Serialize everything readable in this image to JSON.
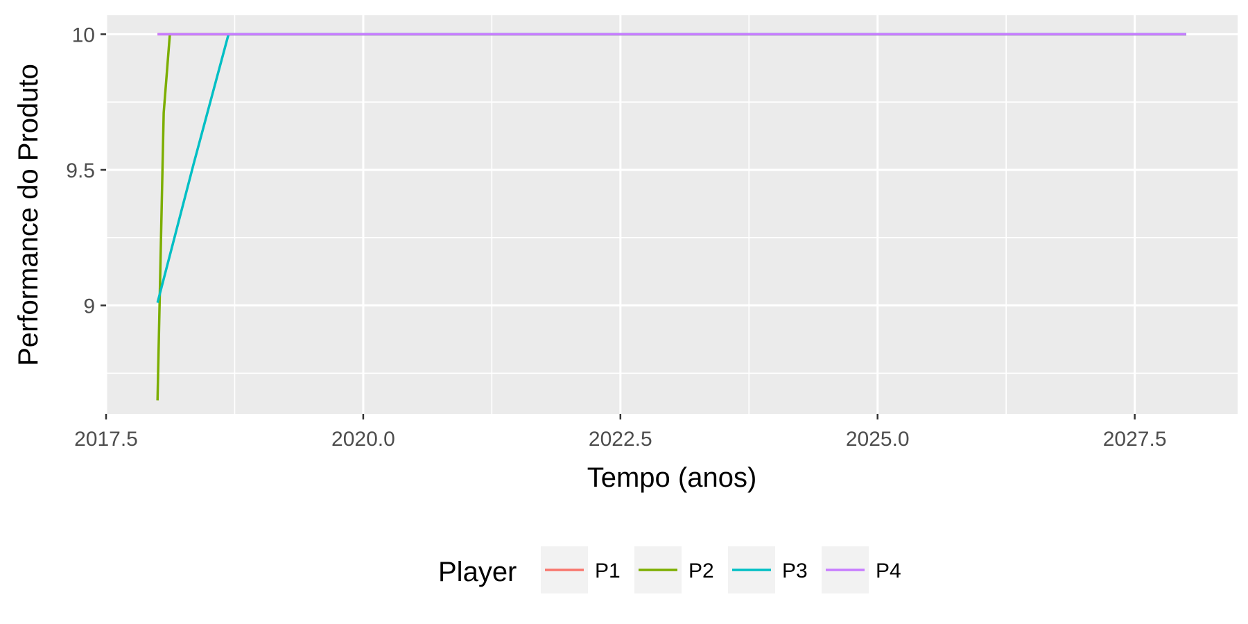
{
  "chart_data": {
    "type": "line",
    "xlabel": "Tempo (anos)",
    "ylabel": "Performance do Produto",
    "xlim": [
      2017.5,
      2028.5
    ],
    "ylim": [
      8.6,
      10.07
    ],
    "x_ticks": [
      2017.5,
      2020.0,
      2022.5,
      2025.0,
      2027.5
    ],
    "x_tick_labels": [
      "2017.5",
      "2020.0",
      "2022.5",
      "2025.0",
      "2027.5"
    ],
    "y_ticks": [
      9,
      9.5,
      10
    ],
    "y_tick_labels": [
      "9",
      "9.5",
      "10"
    ],
    "grid": true,
    "legend": {
      "title": "Player",
      "position": "bottom"
    },
    "series": [
      {
        "name": "P1",
        "color": "#F8766D",
        "x": [
          2018.0,
          2028.0
        ],
        "y": [
          10.0,
          10.0
        ]
      },
      {
        "name": "P2",
        "color": "#7CAE00",
        "x": [
          2018.0,
          2018.06,
          2018.12,
          2028.0
        ],
        "y": [
          8.65,
          9.71,
          10.0,
          10.0
        ]
      },
      {
        "name": "P3",
        "color": "#00BFC4",
        "x": [
          2018.0,
          2018.35,
          2018.69,
          2028.0
        ],
        "y": [
          9.01,
          9.52,
          10.0,
          10.0
        ]
      },
      {
        "name": "P4",
        "color": "#C77CFF",
        "x": [
          2018.0,
          2028.0
        ],
        "y": [
          10.0,
          10.0
        ]
      }
    ]
  }
}
